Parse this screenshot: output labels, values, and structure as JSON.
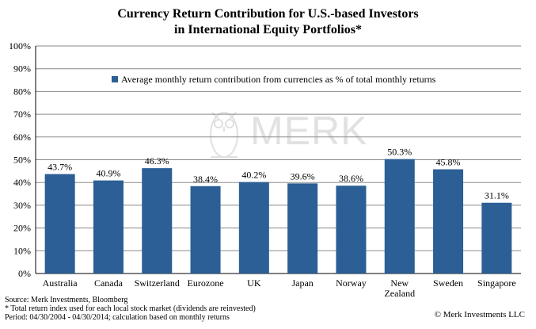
{
  "chart_data": {
    "type": "bar",
    "title_line1": "Currency Return Contribution for U.S.-based Investors",
    "title_line2": "in International Equity Portfolios*",
    "legend": "Average monthly return contribution from currencies as % of total monthly returns",
    "legend_position": "top-center",
    "categories": [
      [
        "Australia"
      ],
      [
        "Canada"
      ],
      [
        "Switzerland"
      ],
      [
        "Eurozone"
      ],
      [
        "UK"
      ],
      [
        "Japan"
      ],
      [
        "Norway"
      ],
      [
        "New",
        "Zealand"
      ],
      [
        "Sweden"
      ],
      [
        "Singapore"
      ]
    ],
    "values": [
      43.7,
      40.9,
      46.3,
      38.4,
      40.2,
      39.6,
      38.6,
      50.3,
      45.8,
      31.1
    ],
    "value_labels": [
      "43.7%",
      "40.9%",
      "46.3%",
      "38.4%",
      "40.2%",
      "39.6%",
      "38.6%",
      "50.3%",
      "45.8%",
      "31.1%"
    ],
    "yticks": [
      "0%",
      "10%",
      "20%",
      "30%",
      "40%",
      "50%",
      "60%",
      "70%",
      "80%",
      "90%",
      "100%"
    ],
    "ylim": [
      0,
      100
    ],
    "grid": true,
    "bar_color": "#2B5F95"
  },
  "watermark": "MERK",
  "footnotes": [
    "Source: Merk Investments, Bloomberg",
    "* Total return index used for each local stock market (dividends are reinvested)",
    "Period: 04/30/2004 - 04/30/2014; calculation based on monthly returns"
  ],
  "copyright": "© Merk Investments LLC"
}
